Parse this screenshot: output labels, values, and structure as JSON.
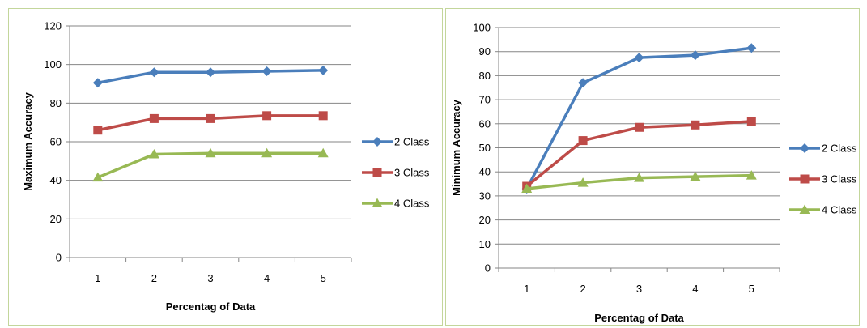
{
  "chart_data": [
    {
      "type": "line",
      "title": "",
      "xlabel": "Percentag of Data",
      "ylabel": "Maximum Accuracy",
      "categories": [
        "1",
        "2",
        "3",
        "4",
        "5"
      ],
      "ylim": [
        0,
        120
      ],
      "yticks": [
        0,
        20,
        40,
        60,
        80,
        100,
        120
      ],
      "grid": true,
      "legend_position": "right",
      "series": [
        {
          "name": "2 Class",
          "values": [
            90.5,
            96,
            96,
            96.5,
            97
          ],
          "color": "#4a7ebb",
          "marker": "diamond"
        },
        {
          "name": "3 Class",
          "values": [
            66,
            72,
            72,
            73.5,
            73.5
          ],
          "color": "#be4b48",
          "marker": "square"
        },
        {
          "name": "4 Class",
          "values": [
            41.5,
            53.5,
            54,
            54,
            54
          ],
          "color": "#98b954",
          "marker": "triangle"
        }
      ]
    },
    {
      "type": "line",
      "title": "",
      "xlabel": "Percentag of Data",
      "ylabel": "Minimum Accuracy",
      "categories": [
        "1",
        "2",
        "3",
        "4",
        "5"
      ],
      "ylim": [
        0,
        100
      ],
      "yticks": [
        0,
        10,
        20,
        30,
        40,
        50,
        60,
        70,
        80,
        90,
        100
      ],
      "grid": true,
      "legend_position": "right",
      "series": [
        {
          "name": "2 Class",
          "values": [
            33,
            77,
            87.5,
            88.5,
            91.5
          ],
          "color": "#4a7ebb",
          "marker": "diamond"
        },
        {
          "name": "3 Class",
          "values": [
            34,
            53,
            58.5,
            59.5,
            61
          ],
          "color": "#be4b48",
          "marker": "square"
        },
        {
          "name": "4 Class",
          "values": [
            33,
            35.5,
            37.5,
            38,
            38.5
          ],
          "color": "#98b954",
          "marker": "triangle"
        }
      ]
    }
  ]
}
